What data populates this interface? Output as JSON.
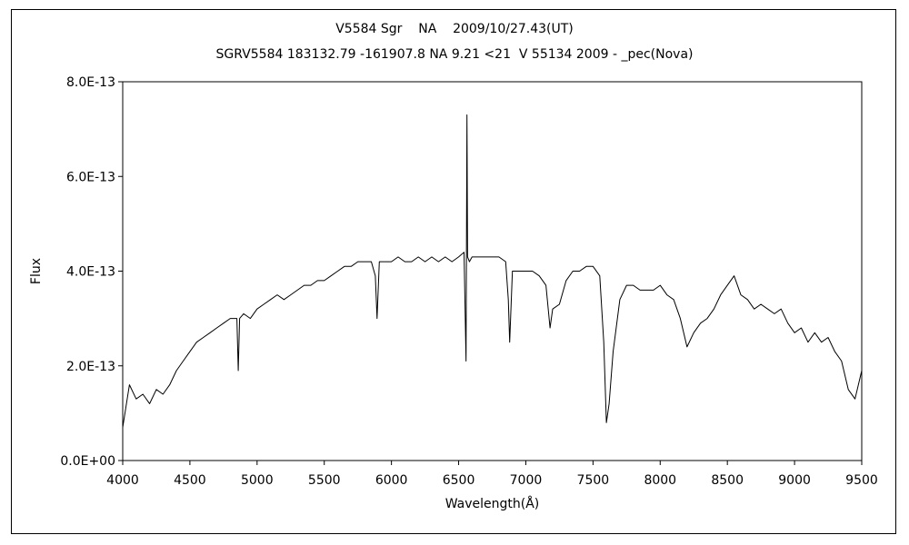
{
  "chart_data": {
    "type": "line",
    "title": "V5584 Sgr    NA    2009/10/27.43(UT)",
    "subtitle": "SGRV5584 183132.79 -161907.8 NA 9.21 <21  V 55134 2009 - _pec(Nova)",
    "xlabel": "Wavelength(Å)",
    "ylabel": "Flux",
    "xlim": [
      4000,
      9500
    ],
    "ylim": [
      0,
      8e-13
    ],
    "xticks": [
      4000,
      4500,
      5000,
      5500,
      6000,
      6500,
      7000,
      7500,
      8000,
      8500,
      9000,
      9500
    ],
    "yticks": [
      0,
      2e-13,
      4e-13,
      6e-13,
      8e-13
    ],
    "ytick_labels": [
      "0.0E+00",
      "2.0E-13",
      "4.0E-13",
      "6.0E-13",
      "8.0E-13"
    ],
    "grid": false,
    "legend": "none",
    "series": [
      {
        "color": "#000000",
        "x": [
          4000,
          4050,
          4100,
          4150,
          4200,
          4250,
          4300,
          4350,
          4400,
          4450,
          4500,
          4550,
          4600,
          4650,
          4700,
          4750,
          4800,
          4850,
          4860,
          4870,
          4900,
          4950,
          5000,
          5050,
          5100,
          5150,
          5200,
          5250,
          5300,
          5350,
          5400,
          5450,
          5500,
          5550,
          5600,
          5650,
          5700,
          5750,
          5800,
          5850,
          5880,
          5893,
          5910,
          5950,
          6000,
          6050,
          6100,
          6150,
          6200,
          6250,
          6300,
          6350,
          6400,
          6450,
          6500,
          6540,
          6555,
          6562,
          6567,
          6580,
          6600,
          6650,
          6700,
          6750,
          6800,
          6850,
          6870,
          6880,
          6900,
          6950,
          7000,
          7050,
          7100,
          7150,
          7180,
          7200,
          7250,
          7300,
          7350,
          7400,
          7450,
          7500,
          7550,
          7580,
          7600,
          7620,
          7650,
          7700,
          7750,
          7800,
          7850,
          7900,
          7950,
          8000,
          8050,
          8100,
          8150,
          8200,
          8250,
          8300,
          8350,
          8400,
          8450,
          8500,
          8550,
          8600,
          8650,
          8700,
          8750,
          8800,
          8850,
          8900,
          8950,
          9000,
          9050,
          9100,
          9150,
          9200,
          9250,
          9300,
          9350,
          9400,
          9450,
          9500
        ],
        "y": [
          7e-14,
          1.6e-13,
          1.3e-13,
          1.4e-13,
          1.2e-13,
          1.5e-13,
          1.4e-13,
          1.6e-13,
          1.9e-13,
          2.1e-13,
          2.3e-13,
          2.5e-13,
          2.6e-13,
          2.7e-13,
          2.8e-13,
          2.9e-13,
          3e-13,
          3e-13,
          1.9e-13,
          3e-13,
          3.1e-13,
          3e-13,
          3.2e-13,
          3.3e-13,
          3.4e-13,
          3.5e-13,
          3.4e-13,
          3.5e-13,
          3.6e-13,
          3.7e-13,
          3.7e-13,
          3.8e-13,
          3.8e-13,
          3.9e-13,
          4e-13,
          4.1e-13,
          4.1e-13,
          4.2e-13,
          4.2e-13,
          4.2e-13,
          3.9e-13,
          3e-13,
          4.2e-13,
          4.2e-13,
          4.2e-13,
          4.3e-13,
          4.2e-13,
          4.2e-13,
          4.3e-13,
          4.2e-13,
          4.3e-13,
          4.2e-13,
          4.3e-13,
          4.2e-13,
          4.3e-13,
          4.4e-13,
          2.1e-13,
          7.3e-13,
          4.3e-13,
          4.2e-13,
          4.3e-13,
          4.3e-13,
          4.3e-13,
          4.3e-13,
          4.3e-13,
          4.2e-13,
          3.4e-13,
          2.5e-13,
          4e-13,
          4e-13,
          4e-13,
          4e-13,
          3.9e-13,
          3.7e-13,
          2.8e-13,
          3.2e-13,
          3.3e-13,
          3.8e-13,
          4e-13,
          4e-13,
          4.1e-13,
          4.1e-13,
          3.9e-13,
          2.5e-13,
          8e-14,
          1.2e-13,
          2.3e-13,
          3.4e-13,
          3.7e-13,
          3.7e-13,
          3.6e-13,
          3.6e-13,
          3.6e-13,
          3.7e-13,
          3.5e-13,
          3.4e-13,
          3e-13,
          2.4e-13,
          2.7e-13,
          2.9e-13,
          3e-13,
          3.2e-13,
          3.5e-13,
          3.7e-13,
          3.9e-13,
          3.5e-13,
          3.4e-13,
          3.2e-13,
          3.3e-13,
          3.2e-13,
          3.1e-13,
          3.2e-13,
          2.9e-13,
          2.7e-13,
          2.8e-13,
          2.5e-13,
          2.7e-13,
          2.5e-13,
          2.6e-13,
          2.3e-13,
          2.1e-13,
          1.5e-13,
          1.3e-13,
          1.9e-13
        ]
      }
    ]
  }
}
